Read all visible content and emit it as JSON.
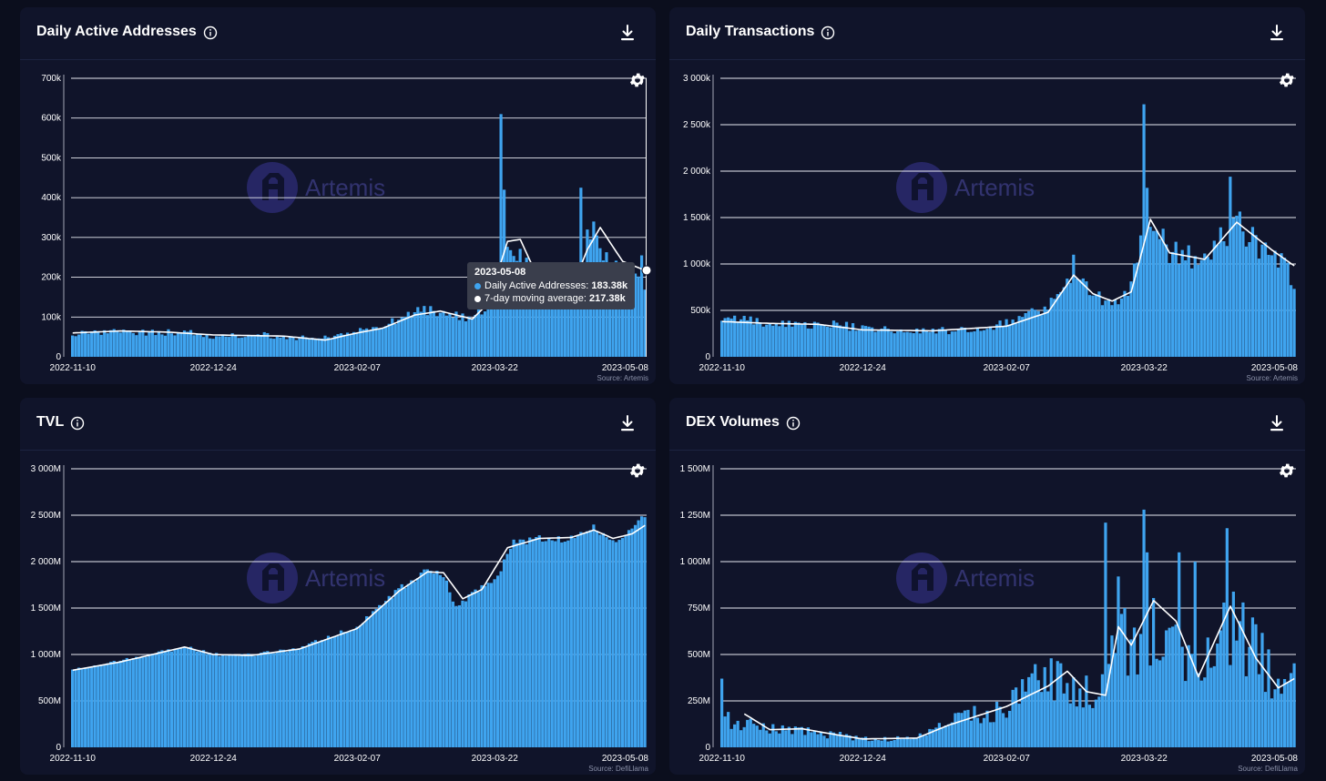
{
  "colors": {
    "background": "#0b0e1d",
    "panel": "#10142a",
    "bar": "#3fa4ef",
    "ma_line": "#ffffff",
    "watermark": "#3e3e86"
  },
  "watermark": "Artemis",
  "icons": {
    "info": "info-circle-icon",
    "download": "download-icon",
    "settings": "gear-icon"
  },
  "chart_data": [
    {
      "id": "daa",
      "type": "bar",
      "title": "Daily Active Addresses",
      "source": "Source: Artemis",
      "yticks": [
        "0",
        "100k",
        "200k",
        "300k",
        "400k",
        "500k",
        "600k",
        "700k"
      ],
      "ylim": [
        0,
        700000
      ],
      "xticks": [
        "2022-11-10",
        "2022-12-24",
        "2023-02-07",
        "2023-03-22",
        "2023-05-08"
      ],
      "x_range": [
        "2022-11-10",
        "2023-05-08"
      ],
      "series": [
        {
          "name": "Daily Active Addresses",
          "style": "bar",
          "keypoints": [
            [
              "2022-11-10",
              58000
            ],
            [
              "2022-11-20",
              62000
            ],
            [
              "2022-12-05",
              60000
            ],
            [
              "2022-12-15",
              62000
            ],
            [
              "2022-12-24",
              50000
            ],
            [
              "2023-01-05",
              58000
            ],
            [
              "2023-01-15",
              50000
            ],
            [
              "2023-01-25",
              45000
            ],
            [
              "2023-02-07",
              62000
            ],
            [
              "2023-02-15",
              75000
            ],
            [
              "2023-02-25",
              110000
            ],
            [
              "2023-03-05",
              118000
            ],
            [
              "2023-03-15",
              90000
            ],
            [
              "2023-03-20",
              140000
            ],
            [
              "2023-03-24",
              250000
            ],
            [
              "2023-03-28",
              260000
            ],
            [
              "2023-04-05",
              180000
            ],
            [
              "2023-04-15",
              170000
            ],
            [
              "2023-04-22",
              300000
            ],
            [
              "2023-04-28",
              220000
            ],
            [
              "2023-05-02",
              190000
            ],
            [
              "2023-05-08",
              183380
            ]
          ],
          "spikes": [
            [
              "2023-03-24",
              610000
            ],
            [
              "2023-03-25",
              420000
            ],
            [
              "2023-04-18",
              425000
            ],
            [
              "2023-04-20",
              320000
            ],
            [
              "2023-04-22",
              340000
            ],
            [
              "2023-05-07",
              255000
            ]
          ]
        },
        {
          "name": "7-day moving average",
          "style": "line",
          "keypoints": [
            [
              "2022-11-10",
              60000
            ],
            [
              "2022-11-25",
              65000
            ],
            [
              "2022-12-10",
              62000
            ],
            [
              "2022-12-24",
              55000
            ],
            [
              "2023-01-15",
              52000
            ],
            [
              "2023-01-28",
              42000
            ],
            [
              "2023-02-07",
              60000
            ],
            [
              "2023-02-15",
              72000
            ],
            [
              "2023-02-25",
              105000
            ],
            [
              "2023-03-05",
              115000
            ],
            [
              "2023-03-15",
              95000
            ],
            [
              "2023-03-20",
              135000
            ],
            [
              "2023-03-26",
              290000
            ],
            [
              "2023-03-30",
              295000
            ],
            [
              "2023-04-05",
              190000
            ],
            [
              "2023-04-15",
              170000
            ],
            [
              "2023-04-20",
              270000
            ],
            [
              "2023-04-24",
              325000
            ],
            [
              "2023-05-01",
              240000
            ],
            [
              "2023-05-08",
              217380
            ]
          ]
        }
      ],
      "tooltip": {
        "date": "2023-05-08",
        "rows": [
          {
            "label": "Daily Active Addresses: ",
            "value": "183.38k"
          },
          {
            "label": "7-day moving average: ",
            "value": "217.38k"
          }
        ]
      }
    },
    {
      "id": "tx",
      "type": "bar",
      "title": "Daily Transactions",
      "source": "Source: Artemis",
      "yticks": [
        "0",
        "500k",
        "1 000k",
        "1 500k",
        "2 000k",
        "2 500k",
        "3 000k"
      ],
      "ylim": [
        0,
        3000000
      ],
      "xticks": [
        "2022-11-10",
        "2022-12-24",
        "2023-02-07",
        "2023-03-22",
        "2023-05-08"
      ],
      "x_range": [
        "2022-11-10",
        "2023-05-08"
      ],
      "series": [
        {
          "name": "Daily Transactions",
          "style": "bar",
          "keypoints": [
            [
              "2022-11-10",
              420000
            ],
            [
              "2022-11-20",
              380000
            ],
            [
              "2022-12-05",
              340000
            ],
            [
              "2022-12-15",
              360000
            ],
            [
              "2022-12-24",
              300000
            ],
            [
              "2023-01-10",
              290000
            ],
            [
              "2023-01-20",
              280000
            ],
            [
              "2023-02-01",
              300000
            ],
            [
              "2023-02-07",
              380000
            ],
            [
              "2023-02-20",
              520000
            ],
            [
              "2023-02-28",
              900000
            ],
            [
              "2023-03-06",
              650000
            ],
            [
              "2023-03-12",
              580000
            ],
            [
              "2023-03-18",
              750000
            ],
            [
              "2023-03-23",
              1500000
            ],
            [
              "2023-03-30",
              1100000
            ],
            [
              "2023-04-10",
              1050000
            ],
            [
              "2023-04-20",
              1400000
            ],
            [
              "2023-04-28",
              1200000
            ],
            [
              "2023-05-04",
              1050000
            ],
            [
              "2023-05-08",
              750000
            ]
          ],
          "spikes": [
            [
              "2023-03-22",
              2720000
            ],
            [
              "2023-03-23",
              1820000
            ],
            [
              "2023-03-24",
              1400000
            ],
            [
              "2023-04-18",
              1940000
            ],
            [
              "2023-04-20",
              1520000
            ],
            [
              "2023-02-28",
              1100000
            ]
          ]
        },
        {
          "name": "7-day moving average",
          "style": "line",
          "keypoints": [
            [
              "2022-11-10",
              380000
            ],
            [
              "2022-11-25",
              360000
            ],
            [
              "2022-12-10",
              350000
            ],
            [
              "2022-12-24",
              290000
            ],
            [
              "2023-01-15",
              280000
            ],
            [
              "2023-02-07",
              330000
            ],
            [
              "2023-02-20",
              480000
            ],
            [
              "2023-02-28",
              880000
            ],
            [
              "2023-03-06",
              680000
            ],
            [
              "2023-03-12",
              600000
            ],
            [
              "2023-03-18",
              700000
            ],
            [
              "2023-03-24",
              1480000
            ],
            [
              "2023-03-30",
              1120000
            ],
            [
              "2023-04-10",
              1050000
            ],
            [
              "2023-04-20",
              1450000
            ],
            [
              "2023-05-01",
              1150000
            ],
            [
              "2023-05-08",
              980000
            ]
          ]
        }
      ]
    },
    {
      "id": "tvl",
      "type": "bar",
      "title": "TVL",
      "source": "Source: DefiLlama",
      "yticks": [
        "0",
        "500M",
        "1 000M",
        "1 500M",
        "2 000M",
        "2 500M",
        "3 000M"
      ],
      "ylim": [
        0,
        3000000000
      ],
      "xticks": [
        "2022-11-10",
        "2022-12-24",
        "2023-02-07",
        "2023-03-22",
        "2023-05-08"
      ],
      "x_range": [
        "2022-11-10",
        "2023-05-08"
      ],
      "series": [
        {
          "name": "TVL",
          "style": "bar",
          "keypoints": [
            [
              "2022-11-10",
              830000000
            ],
            [
              "2022-11-25",
              930000000
            ],
            [
              "2022-12-15",
              1080000000
            ],
            [
              "2022-12-24",
              1000000000
            ],
            [
              "2023-01-05",
              990000000
            ],
            [
              "2023-01-20",
              1070000000
            ],
            [
              "2023-02-07",
              1300000000
            ],
            [
              "2023-02-20",
              1700000000
            ],
            [
              "2023-03-01",
              1900000000
            ],
            [
              "2023-03-06",
              1860000000
            ],
            [
              "2023-03-10",
              1500000000
            ],
            [
              "2023-03-15",
              1650000000
            ],
            [
              "2023-03-22",
              1800000000
            ],
            [
              "2023-03-28",
              2200000000
            ],
            [
              "2023-04-05",
              2250000000
            ],
            [
              "2023-04-15",
              2250000000
            ],
            [
              "2023-04-22",
              2360000000
            ],
            [
              "2023-04-28",
              2200000000
            ],
            [
              "2023-05-04",
              2320000000
            ],
            [
              "2023-05-08",
              2500000000
            ]
          ],
          "spikes": []
        },
        {
          "name": "7-day moving average",
          "style": "line",
          "keypoints": [
            [
              "2022-11-10",
              830000000
            ],
            [
              "2022-11-25",
              920000000
            ],
            [
              "2022-12-15",
              1080000000
            ],
            [
              "2022-12-24",
              1000000000
            ],
            [
              "2023-01-05",
              990000000
            ],
            [
              "2023-01-20",
              1060000000
            ],
            [
              "2023-02-07",
              1280000000
            ],
            [
              "2023-02-20",
              1680000000
            ],
            [
              "2023-03-01",
              1890000000
            ],
            [
              "2023-03-06",
              1880000000
            ],
            [
              "2023-03-12",
              1600000000
            ],
            [
              "2023-03-18",
              1700000000
            ],
            [
              "2023-03-26",
              2150000000
            ],
            [
              "2023-04-05",
              2250000000
            ],
            [
              "2023-04-15",
              2260000000
            ],
            [
              "2023-04-22",
              2340000000
            ],
            [
              "2023-04-28",
              2250000000
            ],
            [
              "2023-05-04",
              2300000000
            ],
            [
              "2023-05-08",
              2390000000
            ]
          ]
        }
      ]
    },
    {
      "id": "dex",
      "type": "bar",
      "title": "DEX Volumes",
      "source": "Source: DefiLlama",
      "yticks": [
        "0",
        "250M",
        "500M",
        "750M",
        "1 000M",
        "1 250M",
        "1 500M"
      ],
      "ylim": [
        0,
        1500000000
      ],
      "xticks": [
        "2022-11-10",
        "2022-12-24",
        "2023-02-07",
        "2023-03-22",
        "2023-05-08"
      ],
      "x_range": [
        "2022-11-10",
        "2023-05-08"
      ],
      "series": [
        {
          "name": "DEX Volumes",
          "style": "bar",
          "keypoints": [
            [
              "2022-11-10",
              150000000
            ],
            [
              "2022-11-20",
              110000000
            ],
            [
              "2022-12-01",
              90000000
            ],
            [
              "2022-12-15",
              70000000
            ],
            [
              "2022-12-24",
              45000000
            ],
            [
              "2023-01-10",
              50000000
            ],
            [
              "2023-01-20",
              130000000
            ],
            [
              "2023-02-07",
              230000000
            ],
            [
              "2023-02-20",
              380000000
            ],
            [
              "2023-02-28",
              300000000
            ],
            [
              "2023-03-08",
              280000000
            ],
            [
              "2023-03-12",
              600000000
            ],
            [
              "2023-03-18",
              550000000
            ],
            [
              "2023-03-25",
              650000000
            ],
            [
              "2023-04-02",
              500000000
            ],
            [
              "2023-04-10",
              450000000
            ],
            [
              "2023-04-18",
              650000000
            ],
            [
              "2023-04-25",
              550000000
            ],
            [
              "2023-05-02",
              350000000
            ],
            [
              "2023-05-08",
              420000000
            ]
          ],
          "spikes": [
            [
              "2022-11-10",
              370000000
            ],
            [
              "2023-03-10",
              1210000000
            ],
            [
              "2023-03-14",
              920000000
            ],
            [
              "2023-03-22",
              1280000000
            ],
            [
              "2023-03-23",
              1050000000
            ],
            [
              "2023-04-02",
              1050000000
            ],
            [
              "2023-04-07",
              1000000000
            ],
            [
              "2023-04-17",
              1180000000
            ],
            [
              "2023-04-22",
              780000000
            ]
          ]
        },
        {
          "name": "7-day moving average",
          "style": "line",
          "keypoints": [
            [
              "2022-11-17",
              180000000
            ],
            [
              "2022-11-25",
              95000000
            ],
            [
              "2022-12-05",
              100000000
            ],
            [
              "2022-12-15",
              70000000
            ],
            [
              "2022-12-24",
              45000000
            ],
            [
              "2023-01-10",
              50000000
            ],
            [
              "2023-01-20",
              120000000
            ],
            [
              "2023-02-07",
              220000000
            ],
            [
              "2023-02-20",
              330000000
            ],
            [
              "2023-02-26",
              410000000
            ],
            [
              "2023-03-04",
              300000000
            ],
            [
              "2023-03-10",
              280000000
            ],
            [
              "2023-03-14",
              650000000
            ],
            [
              "2023-03-18",
              550000000
            ],
            [
              "2023-03-25",
              790000000
            ],
            [
              "2023-04-01",
              680000000
            ],
            [
              "2023-04-08",
              380000000
            ],
            [
              "2023-04-18",
              760000000
            ],
            [
              "2023-04-26",
              480000000
            ],
            [
              "2023-05-03",
              320000000
            ],
            [
              "2023-05-08",
              370000000
            ]
          ]
        }
      ]
    }
  ]
}
